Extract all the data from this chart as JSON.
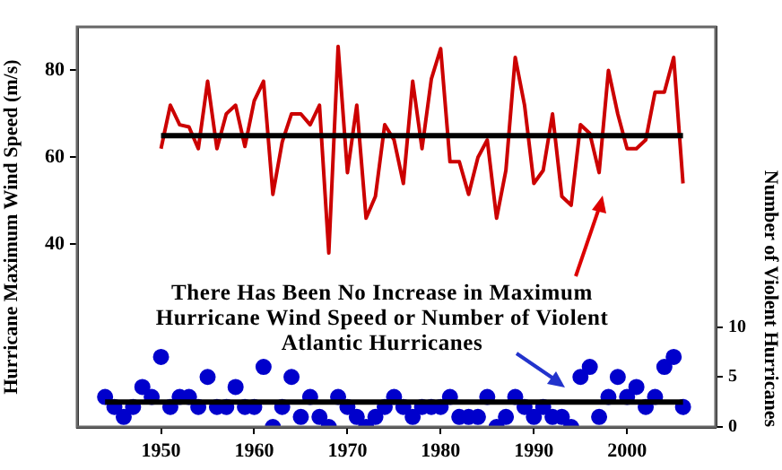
{
  "chart_data": {
    "type": "line",
    "ylabel": "Hurricane Maximum Wind Speed (m/s)",
    "y2label": "Number of Violent Hurricanes",
    "annotations": [
      "There Has Been No Increase in Maximum Hurricane Wind Speed or Number of Violent Atlantic Hurricanes"
    ],
    "x": [
      1950,
      1951,
      1952,
      1953,
      1954,
      1955,
      1956,
      1957,
      1958,
      1959,
      1960,
      1961,
      1962,
      1963,
      1964,
      1965,
      1966,
      1967,
      1968,
      1969,
      1970,
      1971,
      1972,
      1973,
      1974,
      1975,
      1976,
      1977,
      1978,
      1979,
      1980,
      1981,
      1982,
      1983,
      1984,
      1985,
      1986,
      1987,
      1988,
      1989,
      1990,
      1991,
      1992,
      1993,
      1994,
      1995,
      1996,
      1997,
      1998,
      1999,
      2000,
      2001,
      2002,
      2003,
      2004,
      2005,
      2006
    ],
    "xlim": [
      1941,
      2009.5
    ],
    "xticks": [
      1950,
      1960,
      1970,
      1980,
      1990,
      2000
    ],
    "ylim": [
      -2,
      90
    ],
    "yticks": [
      40,
      60,
      80
    ],
    "y2lim": [
      0,
      40
    ],
    "y2ticks": [
      0,
      5,
      10
    ],
    "series": [
      {
        "color": "#cc0000",
        "marker": "none",
        "values": [
          62,
          72,
          67.5,
          67,
          62,
          77.5,
          62,
          70,
          72,
          62.5,
          73,
          77.5,
          51.5,
          63.5,
          70,
          70,
          67.5,
          72,
          38,
          85.5,
          56.5,
          72,
          46,
          51,
          67.5,
          64,
          54,
          77.5,
          62,
          78,
          85,
          59,
          59,
          51.5,
          60,
          64,
          46,
          57,
          83,
          72,
          54,
          57,
          70,
          51,
          49,
          67.5,
          65.5,
          56.5,
          80,
          70,
          62,
          62,
          64,
          75,
          75,
          83,
          54
        ]
      },
      {
        "type": "scatter",
        "axis": "y2",
        "color": "#0000cc",
        "marker": "circle",
        "x": [
          1944,
          1945,
          1946,
          1947,
          1948,
          1949,
          1950,
          1951,
          1952,
          1953,
          1954,
          1955,
          1956,
          1957,
          1958,
          1959,
          1960,
          1961,
          1962,
          1963,
          1964,
          1965,
          1966,
          1967,
          1968,
          1969,
          1970,
          1971,
          1972,
          1973,
          1974,
          1975,
          1976,
          1977,
          1978,
          1979,
          1980,
          1981,
          1982,
          1983,
          1984,
          1985,
          1986,
          1987,
          1988,
          1989,
          1990,
          1991,
          1992,
          1993,
          1994,
          1995,
          1996,
          1997,
          1998,
          1999,
          2000,
          2001,
          2002,
          2003,
          2004,
          2005,
          2006
        ],
        "values": [
          3,
          2,
          1,
          2,
          4,
          3,
          7,
          2,
          3,
          3,
          2,
          5,
          2,
          2,
          4,
          2,
          2,
          6,
          0,
          2,
          5,
          1,
          3,
          1,
          0,
          3,
          2,
          1,
          0,
          1,
          2,
          3,
          2,
          1,
          2,
          2,
          2,
          3,
          1,
          1,
          1,
          3,
          0,
          1,
          3,
          2,
          1,
          2,
          1,
          1,
          0,
          5,
          6,
          1,
          3,
          5,
          3,
          4,
          2,
          3,
          6,
          7,
          2
        ]
      }
    ],
    "ref_lines": [
      {
        "axis": "y",
        "value": 65,
        "color": "#000000"
      },
      {
        "axis": "y2",
        "value": 2.5,
        "color": "#000000"
      }
    ],
    "grid": false,
    "legend": false
  }
}
